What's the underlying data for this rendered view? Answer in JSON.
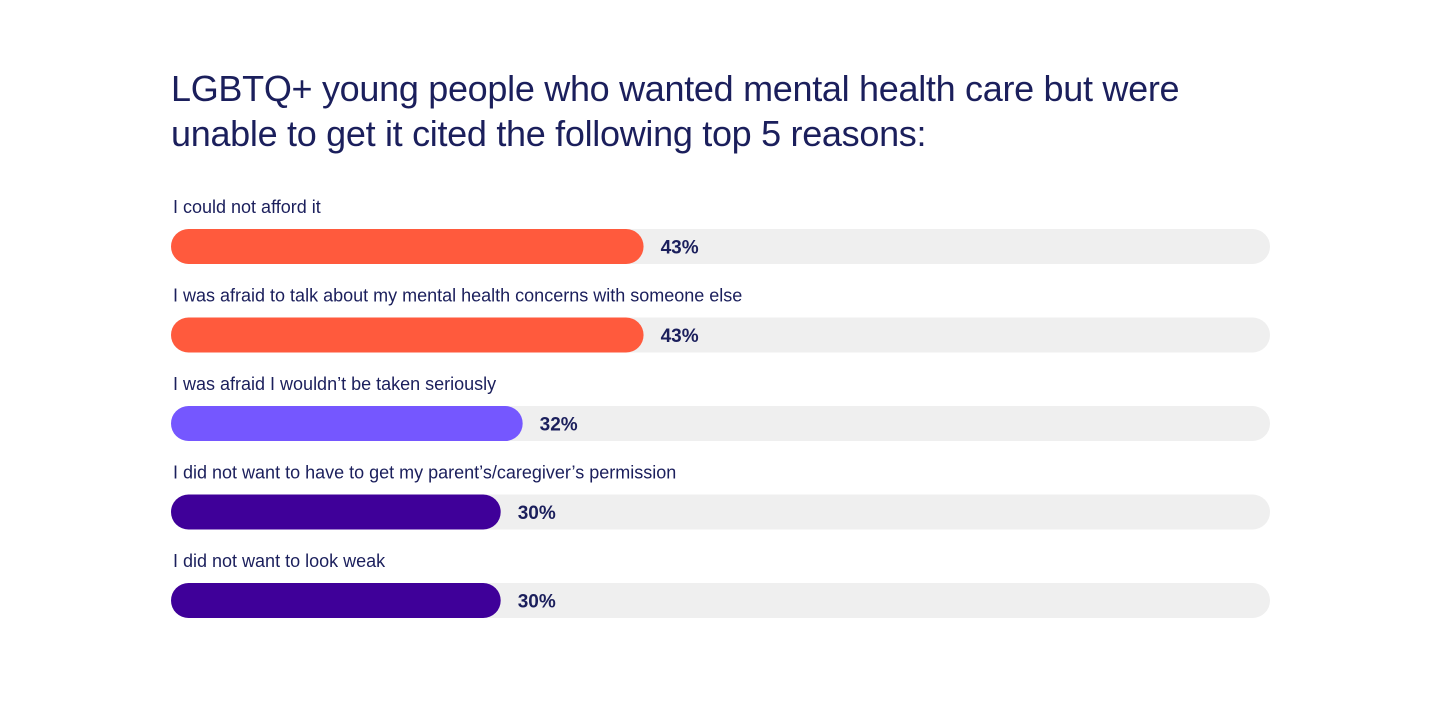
{
  "chart_data": {
    "type": "bar",
    "orientation": "horizontal",
    "title": "LGBTQ+ young people who wanted mental health care but were unable to get it cited the following top 5 reasons:",
    "categories": [
      "I could not afford it",
      "I was afraid to talk about my mental health concerns with someone else",
      "I was afraid I wouldn’t be taken seriously",
      "I did not want to have to get my parent’s/caregiver’s permission",
      "I did not want to look weak"
    ],
    "values": [
      43,
      43,
      32,
      30,
      30
    ],
    "value_labels": [
      "43%",
      "43%",
      "32%",
      "30%",
      "30%"
    ],
    "unit": "%",
    "xlim": [
      0,
      100
    ],
    "bar_colors": [
      "#ff5a3d",
      "#ff5a3d",
      "#7557ff",
      "#3f0099",
      "#3f0099"
    ],
    "track_color": "#efefef",
    "text_color": "#1b1f5c",
    "grid": false,
    "legend": "none"
  }
}
